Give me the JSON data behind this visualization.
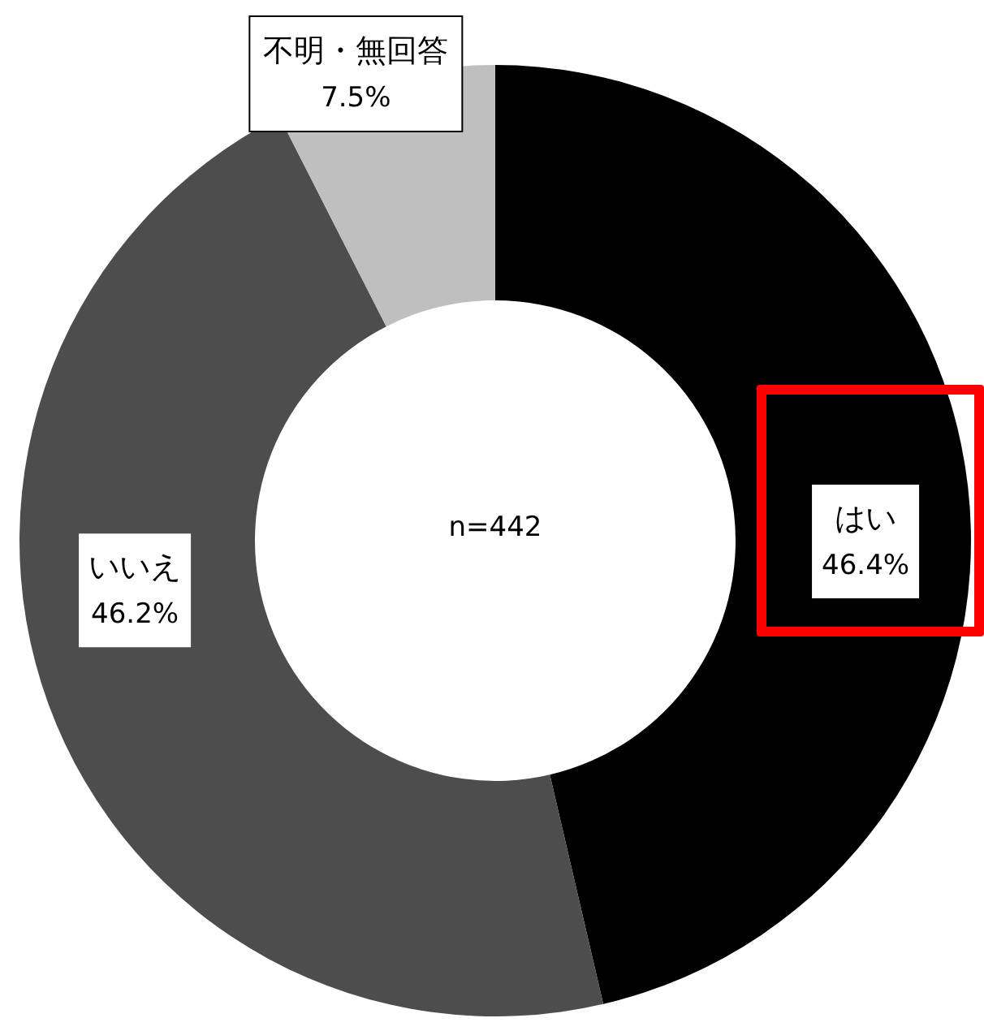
{
  "chart_data": {
    "type": "donut",
    "categories": [
      "はい",
      "いいえ",
      "不明・無回答"
    ],
    "values": [
      46.4,
      46.2,
      7.5
    ],
    "colors": [
      "#000000",
      "#4d4d4d",
      "#bfbfbf"
    ],
    "value_labels": [
      "46.4%",
      "46.2%",
      "7.5%"
    ],
    "annotations": [
      "n=442"
    ]
  }
}
